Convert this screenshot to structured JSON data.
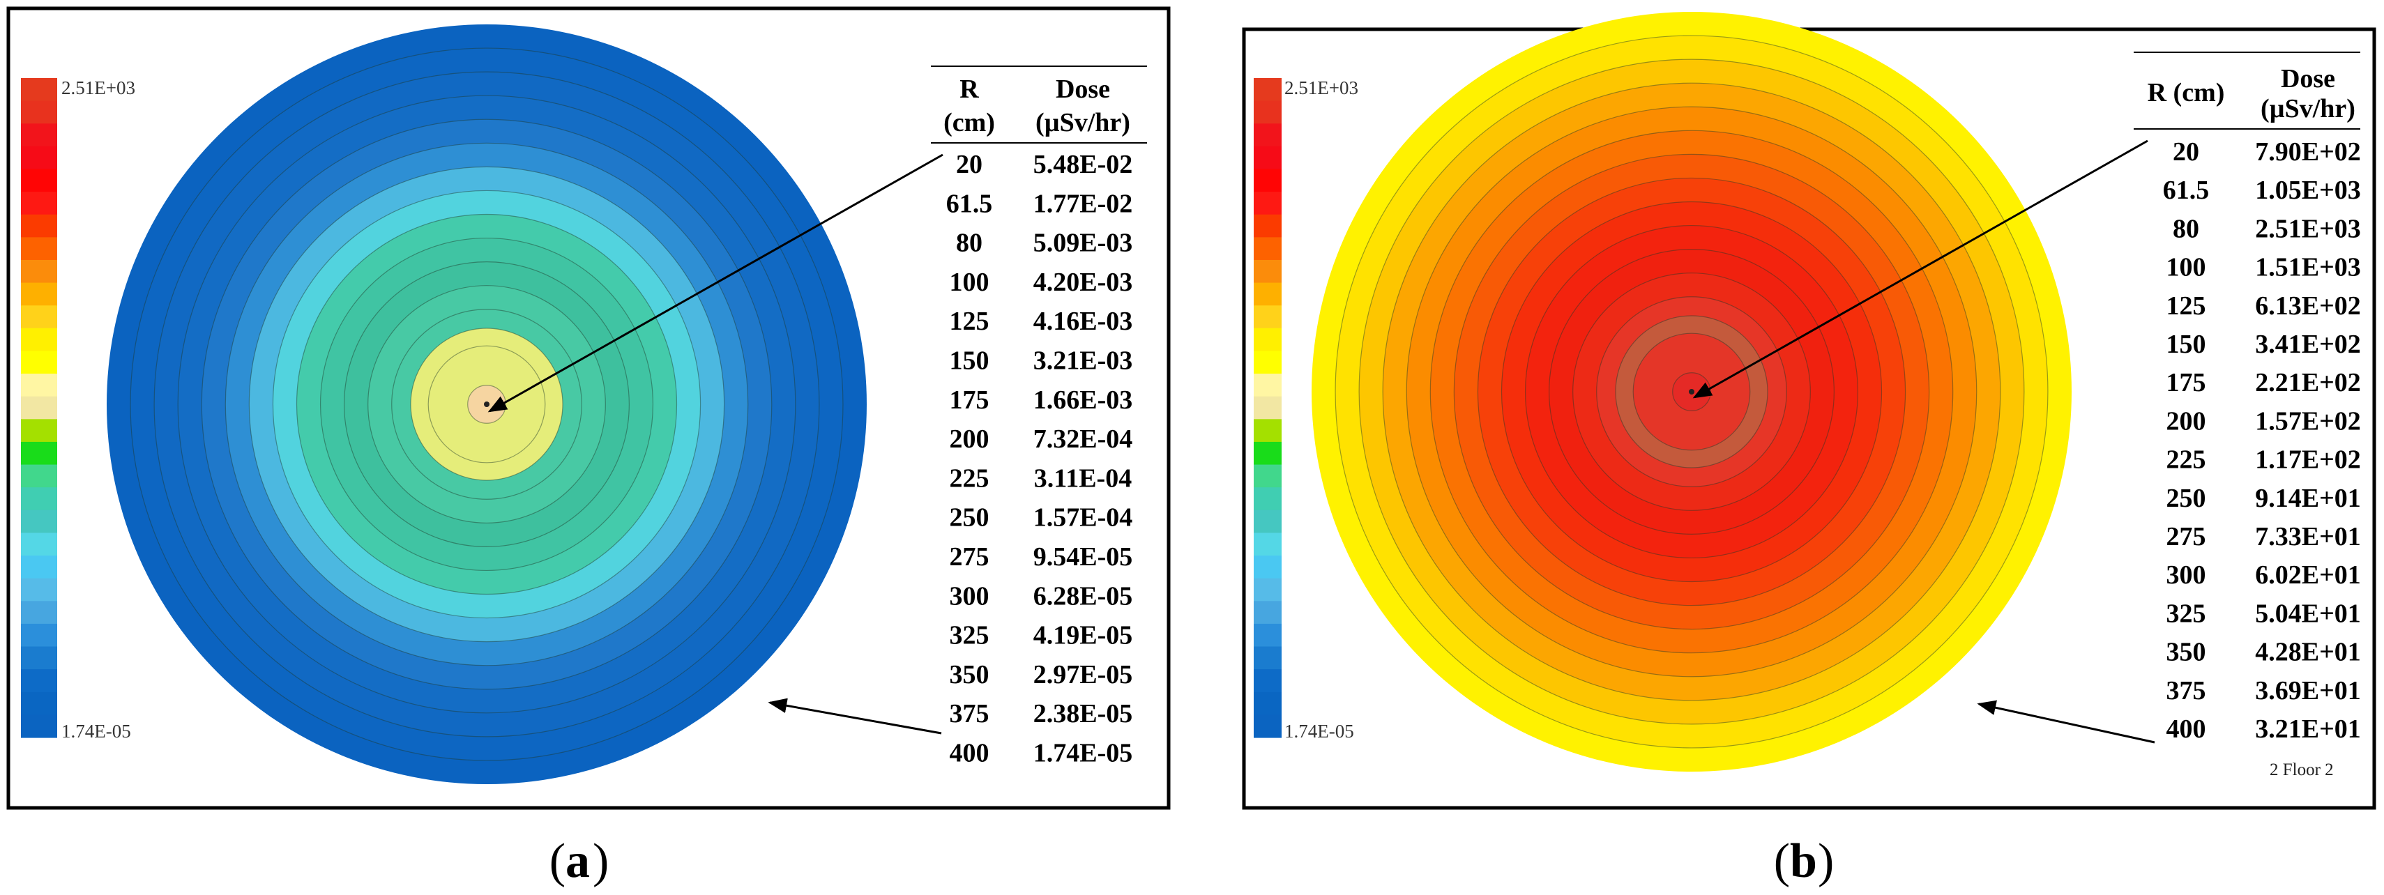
{
  "colorbar": {
    "max_label": "2.51E+03",
    "min_label": "1.74E-05",
    "colors": [
      "#e53a1e",
      "#e8321e",
      "#f2141b",
      "#f60b17",
      "#ff0505",
      "#fe1913",
      "#fb3b00",
      "#fd6200",
      "#fb8c0b",
      "#feb000",
      "#ffd21a",
      "#fff000",
      "#ffff00",
      "#fff6a3",
      "#f2e7a3",
      "#a4e000",
      "#19dc1a",
      "#41d78c",
      "#40ceb2",
      "#45c7c1",
      "#54d7e6",
      "#4ac8f2",
      "#56bbe8",
      "#47a6e0",
      "#2b8fdb",
      "#1a7ccf",
      "#0d6bc7",
      "#0a66c2",
      "#0b64c1"
    ]
  },
  "ring_radii_cm": [
    20,
    61.5,
    80,
    100,
    125,
    150,
    175,
    200,
    225,
    250,
    275,
    300,
    325,
    350,
    375,
    400
  ],
  "panels": [
    {
      "id": "a",
      "caption_text": "a",
      "table_header": {
        "r_line1": "R",
        "r_line2": "(cm)",
        "dose_line1": "Dose",
        "dose_line2": "(µSv/hr)"
      },
      "ring_colors": [
        "#f6d5a1",
        "#e5ed7a",
        "#e5ed7a",
        "#48c9a4",
        "#48c9a4",
        "#3ec09e",
        "#40c4a3",
        "#44cbab",
        "#52d3de",
        "#4cb8e0",
        "#2e8fd4",
        "#1f78ca",
        "#146dc5",
        "#1169c3",
        "#0d66c2",
        "#0b63c0"
      ],
      "footer_label": ""
    },
    {
      "id": "b",
      "caption_text": "b",
      "table_header": {
        "r_line1": "R (cm)",
        "r_line2": "",
        "dose_line1": "Dose",
        "dose_line2": "(µSv/hr)"
      },
      "ring_colors": [
        "#e52a26",
        "#e43628",
        "#c45a3c",
        "#e63627",
        "#ed2a16",
        "#f0210f",
        "#f3230e",
        "#f52e0b",
        "#f74109",
        "#f85a06",
        "#fa7302",
        "#fb8c00",
        "#fca601",
        "#fdc600",
        "#ffe200",
        "#fff200"
      ],
      "footer_label": "2 Floor 2"
    }
  ],
  "chart_data": [
    {
      "type": "table",
      "title": "(a)",
      "columns": [
        "R (cm)",
        "Dose (µSv/hr)"
      ],
      "x": [
        "20",
        "61.5",
        "80",
        "100",
        "125",
        "150",
        "175",
        "200",
        "225",
        "250",
        "275",
        "300",
        "325",
        "350",
        "375",
        "400"
      ],
      "values": [
        "5.48E-02",
        "1.77E-02",
        "5.09E-03",
        "4.20E-03",
        "4.16E-03",
        "3.21E-03",
        "1.66E-03",
        "7.32E-04",
        "3.11E-04",
        "1.57E-04",
        "9.54E-05",
        "6.28E-05",
        "4.19E-05",
        "2.97E-05",
        "2.38E-05",
        "1.74E-05"
      ],
      "colorbar_range": [
        "1.74E-05",
        "2.51E+03"
      ]
    },
    {
      "type": "table",
      "title": "(b)",
      "columns": [
        "R (cm)",
        "Dose (µSv/hr)"
      ],
      "x": [
        "20",
        "61.5",
        "80",
        "100",
        "125",
        "150",
        "175",
        "200",
        "225",
        "250",
        "275",
        "300",
        "325",
        "350",
        "375",
        "400"
      ],
      "values": [
        "7.90E+02",
        "1.05E+03",
        "2.51E+03",
        "1.51E+03",
        "6.13E+02",
        "3.41E+02",
        "2.21E+02",
        "1.57E+02",
        "1.17E+02",
        "9.14E+01",
        "7.33E+01",
        "6.02E+01",
        "5.04E+01",
        "4.28E+01",
        "3.69E+01",
        "3.21E+01"
      ],
      "colorbar_range": [
        "1.74E-05",
        "2.51E+03"
      ]
    }
  ]
}
